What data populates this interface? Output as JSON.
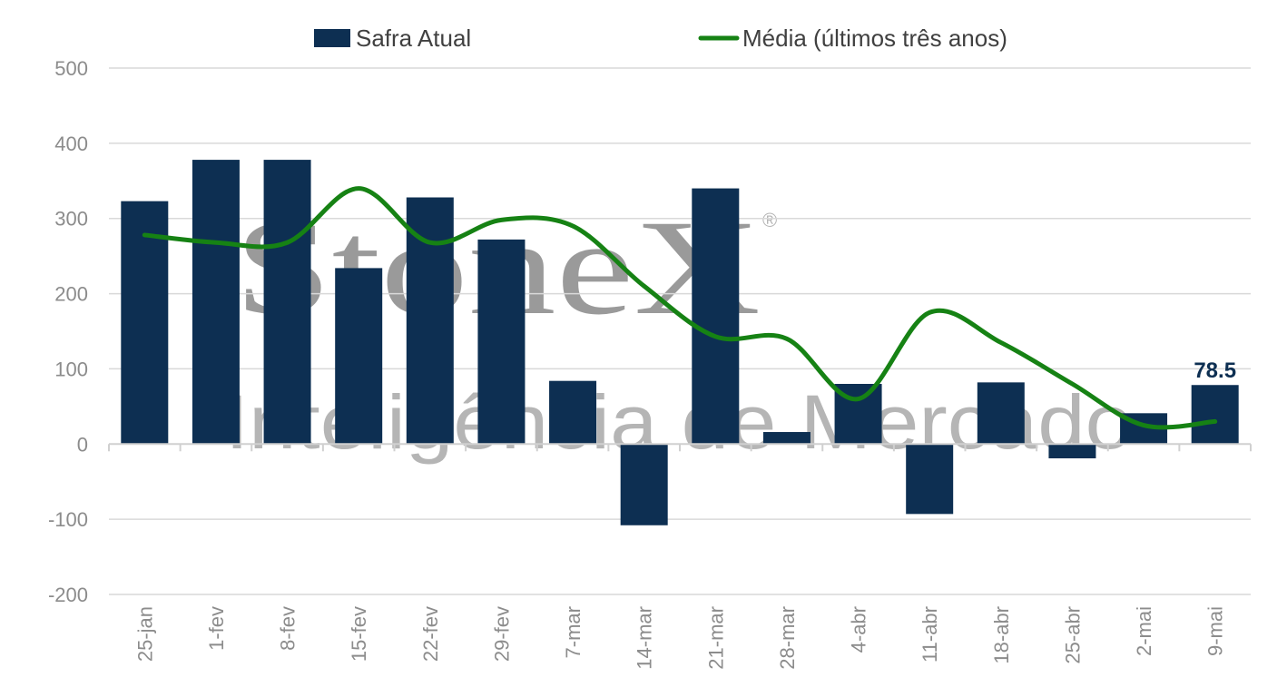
{
  "watermark": {
    "brand": "StoneX",
    "registered": "®",
    "tagline": "Inteligência de Mercado"
  },
  "chart_data": {
    "type": "bar",
    "categories": [
      "25-jan",
      "1-fev",
      "8-fev",
      "15-fev",
      "22-fev",
      "29-fev",
      "7-mar",
      "14-mar",
      "21-mar",
      "28-mar",
      "4-abr",
      "11-abr",
      "18-abr",
      "25-abr",
      "2-mai",
      "9-mai"
    ],
    "series": [
      {
        "name": "Safra Atual",
        "type": "bar",
        "color": "#0d2f52",
        "values": [
          323,
          378,
          378,
          234,
          328,
          272,
          84,
          -108,
          340,
          16,
          80,
          -93,
          82,
          -19,
          41,
          78.5
        ]
      },
      {
        "name": "Média (últimos três anos)",
        "type": "line",
        "color": "#168214",
        "values": [
          278,
          268,
          268,
          340,
          268,
          298,
          290,
          210,
          143,
          140,
          60,
          175,
          135,
          80,
          25,
          30
        ]
      }
    ],
    "data_labels": [
      {
        "series": 0,
        "index": 15,
        "text": "78.5"
      }
    ],
    "y_ticks": [
      500,
      400,
      300,
      200,
      100,
      0,
      -100,
      -200
    ],
    "ylim": [
      -200,
      500
    ],
    "grid": true,
    "legend_position": "top-center",
    "title": "",
    "xlabel": "",
    "ylabel": ""
  }
}
